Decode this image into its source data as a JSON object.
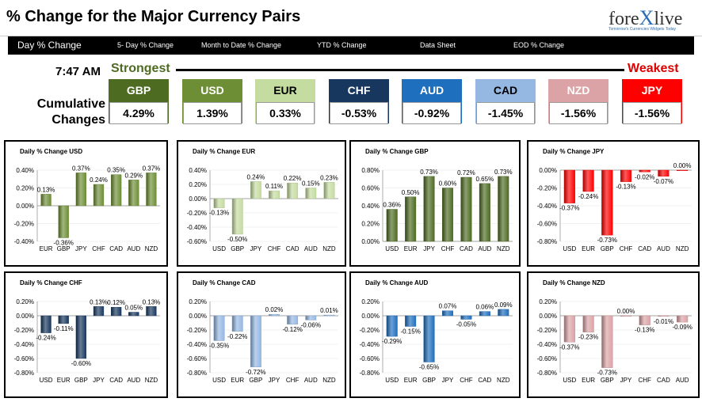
{
  "header": {
    "title": "% Change for the Major Currency Pairs",
    "logo_pre": "fore",
    "logo_x": "X",
    "logo_post": "live",
    "tagline": "Tomorrow's Currencies Widgets Today"
  },
  "nav": [
    "Day % Change",
    "5- Day % Change",
    "Month to Date % Change",
    "YTD % Change",
    "Data Sheet",
    "EOD % Change"
  ],
  "time": "7:47 AM",
  "strongest_label": "Strongest",
  "weakest_label": "Weakest",
  "cumulative_label": [
    "Cumulative",
    "Changes"
  ],
  "colors": {
    "GBP": "#4e6b22",
    "USD": "#6e8e36",
    "EUR": "#c5dca0",
    "CHF": "#17375e",
    "AUD": "#1f6fbf",
    "CAD": "#95b8e3",
    "NZD": "#dba3a6",
    "JPY": "#ff0000"
  },
  "tiles": [
    {
      "ccy": "GBP",
      "value": "4.29%",
      "text_color": "#ffffff"
    },
    {
      "ccy": "USD",
      "value": "1.39%",
      "text_color": "#ffffff"
    },
    {
      "ccy": "EUR",
      "value": "0.33%",
      "text_color": "#000000"
    },
    {
      "ccy": "CHF",
      "value": "-0.53%",
      "text_color": "#ffffff"
    },
    {
      "ccy": "AUD",
      "value": "-0.92%",
      "text_color": "#ffffff"
    },
    {
      "ccy": "CAD",
      "value": "-1.45%",
      "text_color": "#000000"
    },
    {
      "ccy": "NZD",
      "value": "-1.56%",
      "text_color": "#ffffff"
    },
    {
      "ccy": "JPY",
      "value": "-1.56%",
      "text_color": "#ffffff"
    }
  ],
  "chart_data": [
    {
      "type": "bar",
      "ccy": "USD",
      "title": "Daily % Change USD",
      "categories": [
        "EUR",
        "GBP",
        "JPY",
        "CHF",
        "CAD",
        "AUD",
        "NZD"
      ],
      "values": [
        0.13,
        -0.36,
        0.37,
        0.24,
        0.35,
        0.29,
        0.37
      ],
      "labels": [
        "0.13%",
        "-0.36%",
        "0.37%",
        "0.24%",
        "0.35%",
        "0.29%",
        "0.37%"
      ],
      "ylim": [
        -0.4,
        0.4
      ],
      "ticks": [
        "0.40%",
        "0.20%",
        "0.00%",
        "-0.20%",
        "-0.40%"
      ],
      "tick_values": [
        0.4,
        0.2,
        0,
        -0.2,
        -0.4
      ]
    },
    {
      "type": "bar",
      "ccy": "EUR",
      "title": "Daily % Change EUR",
      "categories": [
        "USD",
        "GBP",
        "JPY",
        "CHF",
        "CAD",
        "AUD",
        "NZD"
      ],
      "values": [
        -0.13,
        -0.5,
        0.24,
        0.11,
        0.22,
        0.15,
        0.23
      ],
      "labels": [
        "-0.13%",
        "-0.50%",
        "0.24%",
        "0.11%",
        "0.22%",
        "0.15%",
        "0.23%"
      ],
      "ylim": [
        -0.6,
        0.4
      ],
      "ticks": [
        "0.40%",
        "0.20%",
        "0.00%",
        "-0.20%",
        "-0.40%",
        "-0.60%"
      ],
      "tick_values": [
        0.4,
        0.2,
        0,
        -0.2,
        -0.4,
        -0.6
      ]
    },
    {
      "type": "bar",
      "ccy": "GBP",
      "title": "Daily % Change GBP",
      "categories": [
        "USD",
        "EUR",
        "JPY",
        "CHF",
        "CAD",
        "AUD",
        "NZD"
      ],
      "values": [
        0.36,
        0.5,
        0.73,
        0.6,
        0.72,
        0.65,
        0.73
      ],
      "labels": [
        "0.36%",
        "0.50%",
        "0.73%",
        "0.60%",
        "0.72%",
        "0.65%",
        "0.73%"
      ],
      "ylim": [
        0,
        0.8
      ],
      "ticks": [
        "0.80%",
        "0.60%",
        "0.40%",
        "0.20%",
        "0.00%"
      ],
      "tick_values": [
        0.8,
        0.6,
        0.4,
        0.2,
        0
      ]
    },
    {
      "type": "bar",
      "ccy": "JPY",
      "title": "Daily % Change JPY",
      "categories": [
        "USD",
        "EUR",
        "GBP",
        "CHF",
        "CAD",
        "AUD",
        "NZD"
      ],
      "values": [
        -0.37,
        -0.24,
        -0.73,
        -0.13,
        -0.02,
        -0.07,
        0.0
      ],
      "labels": [
        "-0.37%",
        "-0.24%",
        "-0.73%",
        "-0.13%",
        "-0.02%",
        "-0.07%",
        "0.00%"
      ],
      "ylim": [
        -0.8,
        0
      ],
      "ticks": [
        "0.00%",
        "-0.20%",
        "-0.40%",
        "-0.60%",
        "-0.80%"
      ],
      "tick_values": [
        0,
        -0.2,
        -0.4,
        -0.6,
        -0.8
      ]
    },
    {
      "type": "bar",
      "ccy": "CHF",
      "title": "Daily % Change CHF",
      "categories": [
        "USD",
        "EUR",
        "GBP",
        "JPY",
        "CAD",
        "AUD",
        "NZD"
      ],
      "values": [
        -0.24,
        -0.11,
        -0.6,
        0.13,
        0.12,
        0.05,
        0.13
      ],
      "labels": [
        "-0.24%",
        "-0.11%",
        "-0.60%",
        "0.13%",
        "0.12%",
        "0.05%",
        "0.13%"
      ],
      "ylim": [
        -0.8,
        0.2
      ],
      "ticks": [
        "0.20%",
        "0.00%",
        "-0.20%",
        "-0.40%",
        "-0.60%",
        "-0.80%"
      ],
      "tick_values": [
        0.2,
        0,
        -0.2,
        -0.4,
        -0.6,
        -0.8
      ]
    },
    {
      "type": "bar",
      "ccy": "CAD",
      "title": "Daily % Change CAD",
      "categories": [
        "USD",
        "EUR",
        "GBP",
        "JPY",
        "CHF",
        "AUD",
        "NZD"
      ],
      "values": [
        -0.35,
        -0.22,
        -0.72,
        0.02,
        -0.12,
        -0.06,
        0.01
      ],
      "labels": [
        "-0.35%",
        "-0.22%",
        "-0.72%",
        "0.02%",
        "-0.12%",
        "-0.06%",
        "0.01%"
      ],
      "ylim": [
        -0.8,
        0.2
      ],
      "ticks": [
        "0.20%",
        "0.00%",
        "-0.20%",
        "-0.40%",
        "-0.60%",
        "-0.80%"
      ],
      "tick_values": [
        0.2,
        0,
        -0.2,
        -0.4,
        -0.6,
        -0.8
      ]
    },
    {
      "type": "bar",
      "ccy": "AUD",
      "title": "Daily % Change AUD",
      "categories": [
        "USD",
        "EUR",
        "GBP",
        "JPY",
        "CHF",
        "CAD",
        "NZD"
      ],
      "values": [
        -0.29,
        -0.15,
        -0.65,
        0.07,
        -0.05,
        0.06,
        0.09
      ],
      "labels": [
        "-0.29%",
        "-0.15%",
        "-0.65%",
        "0.07%",
        "-0.05%",
        "0.06%",
        "0.09%"
      ],
      "ylim": [
        -0.8,
        0.2
      ],
      "ticks": [
        "0.20%",
        "0.00%",
        "-0.20%",
        "-0.40%",
        "-0.60%",
        "-0.80%"
      ],
      "tick_values": [
        0.2,
        0,
        -0.2,
        -0.4,
        -0.6,
        -0.8
      ]
    },
    {
      "type": "bar",
      "ccy": "NZD",
      "title": "Daily % Change NZD",
      "categories": [
        "USD",
        "EUR",
        "GBP",
        "JPY",
        "CHF",
        "CAD",
        "AUD"
      ],
      "values": [
        -0.37,
        -0.23,
        -0.73,
        0.0,
        -0.13,
        -0.01,
        -0.09
      ],
      "labels": [
        "-0.37%",
        "-0.23%",
        "-0.73%",
        "0.00%",
        "-0.13%",
        "-0.01%",
        "-0.09%"
      ],
      "ylim": [
        -0.8,
        0.2
      ],
      "ticks": [
        "0.20%",
        "0.00%",
        "-0.20%",
        "-0.40%",
        "-0.60%",
        "-0.80%"
      ],
      "tick_values": [
        0.2,
        0,
        -0.2,
        -0.4,
        -0.6,
        -0.8
      ]
    }
  ]
}
